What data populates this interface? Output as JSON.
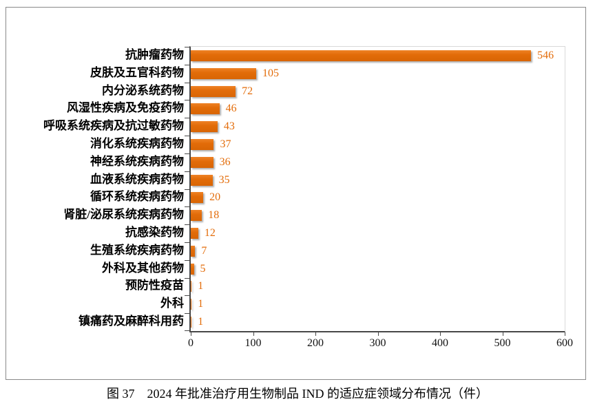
{
  "figure": {
    "caption": "图 37　2024 年批准治疗用生物制品 IND 的适应症领域分布情况（件）"
  },
  "chart_data": {
    "type": "bar",
    "orientation": "horizontal",
    "title": "",
    "xlabel": "",
    "ylabel": "",
    "categories": [
      "抗肿瘤药物",
      "皮肤及五官科药物",
      "内分泌系统药物",
      "风湿性疾病及免疫药物",
      "呼吸系统疾病及抗过敏药物",
      "消化系统疾病药物",
      "神经系统疾病药物",
      "血液系统疾病药物",
      "循环系统疾病药物",
      "肾脏/泌尿系统疾病药物",
      "抗感染药物",
      "生殖系统疾病药物",
      "外科及其他药物",
      "预防性疫苗",
      "外科",
      "镇痛药及麻醉科用药"
    ],
    "values": [
      546,
      105,
      72,
      46,
      43,
      37,
      36,
      35,
      20,
      18,
      12,
      7,
      5,
      1,
      1,
      1
    ],
    "xlim": [
      0,
      600
    ],
    "x_ticks": [
      0,
      100,
      200,
      300,
      400,
      500,
      600
    ],
    "grid": false,
    "legend": null,
    "bar_color": "#E36C0A",
    "value_label_color": "#E36C0A",
    "axis_color": "#474747",
    "frame_border_color": "#898989"
  }
}
